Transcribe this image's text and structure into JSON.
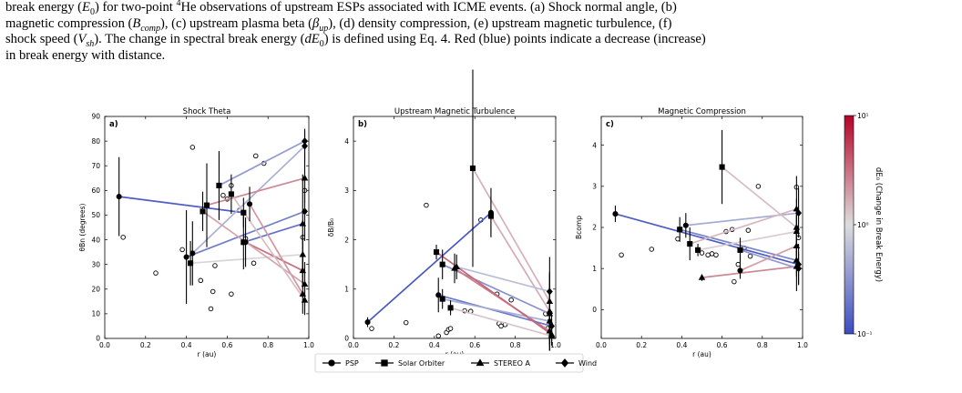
{
  "caption": {
    "line1_html": "break energy (<i>E</i><sub>0</sub>) for two-point <sup>4</sup>He observations of upstream ESPs associated with ICME events. (a) Shock normal angle, (b)",
    "line2_html": "magnetic compression (<i>B<sub>comp</sub></i>), (c) upstream plasma beta (<i>β<sub>up</sub></i>), (d) density compression, (e) upstream magnetic turbulence, (f)",
    "line3_html": "shock speed (<i>V<sub>sh</sub></i>). The change in spectral break energy (<i>dE</i><sub>0</sub>) is defined using Eq. 4. Red (blue) points indicate a decrease (increase)",
    "line4_html": "in break energy with distance."
  },
  "colors": {
    "cmap_low": "#3b4cc0",
    "cmap_mid": "#dddddd",
    "cmap_high": "#b40426",
    "error_bar": "#000000"
  },
  "legend": {
    "entries": [
      {
        "label": "PSP",
        "marker": "circle"
      },
      {
        "label": "Solar Orbiter",
        "marker": "square"
      },
      {
        "label": "STEREO A",
        "marker": "triangle"
      },
      {
        "label": "Wind",
        "marker": "diamond"
      }
    ]
  },
  "colorbar": {
    "label": "dE₀ (Change in Break Energy)",
    "scale": "log",
    "ticks": [
      "10⁻¹",
      "10⁰",
      "10¹"
    ],
    "range": [
      0.1,
      10
    ]
  },
  "chart_data": [
    {
      "type": "scatter",
      "panel_label": "a)",
      "title": "Shock Theta",
      "xlabel": "r (au)",
      "ylabel": "θBn (degrees)",
      "xlim": [
        0,
        1.0
      ],
      "ylim": [
        0,
        90
      ],
      "xticks": [
        "0.0",
        "0.2",
        "0.4",
        "0.6",
        "0.8",
        "1.0"
      ],
      "yticks": [
        "0",
        "10",
        "20",
        "30",
        "40",
        "50",
        "60",
        "70",
        "80",
        "90"
      ],
      "open_points": [
        [
          0.09,
          41
        ],
        [
          0.25,
          26.5
        ],
        [
          0.38,
          36
        ],
        [
          0.43,
          77.5
        ],
        [
          0.47,
          23.5
        ],
        [
          0.52,
          12
        ],
        [
          0.53,
          19
        ],
        [
          0.54,
          29.5
        ],
        [
          0.58,
          58
        ],
        [
          0.6,
          56.5
        ],
        [
          0.62,
          62
        ],
        [
          0.62,
          18
        ],
        [
          0.66,
          52
        ],
        [
          0.69,
          40.5
        ],
        [
          0.73,
          30.5
        ],
        [
          0.74,
          74
        ],
        [
          0.78,
          71
        ],
        [
          0.97,
          41
        ],
        [
          0.98,
          60
        ]
      ],
      "pairs": [
        {
          "x1": 0.07,
          "y1": 57.5,
          "m1": "circle",
          "e1": 16,
          "x2": 0.68,
          "y2": 51,
          "m2": "square",
          "e2": 6,
          "dE0": 0.13
        },
        {
          "x1": 0.4,
          "y1": 33,
          "m1": "circle",
          "e1": 19,
          "x2": 0.98,
          "y2": 51.5,
          "m2": "diamond",
          "e2": 12,
          "dE0": 0.22
        },
        {
          "x1": 0.42,
          "y1": 30.5,
          "m1": "square",
          "e1": 9,
          "x2": 0.97,
          "y2": 34,
          "m2": "triangle",
          "e2": 8,
          "dE0": 1.1
        },
        {
          "x1": 0.43,
          "y1": 34.5,
          "m1": "circle",
          "e1": 13,
          "x2": 0.98,
          "y2": 78,
          "m2": "diamond",
          "e2": 6,
          "dE0": 0.5
        },
        {
          "x1": 0.5,
          "y1": 54,
          "m1": "square",
          "e1": 17,
          "x2": 0.98,
          "y2": 65,
          "m2": "triangle",
          "e2": 10,
          "dE0": 2.5
        },
        {
          "x1": 0.56,
          "y1": 62,
          "m1": "square",
          "e1": 14,
          "x2": 0.98,
          "y2": 80,
          "m2": "diamond",
          "e2": 5,
          "dE0": 0.35
        },
        {
          "x1": 0.68,
          "y1": 39,
          "m1": "square",
          "e1": 11,
          "x2": 0.97,
          "y2": 46.5,
          "m2": "triangle",
          "e2": 20,
          "dE0": 0.18
        },
        {
          "x1": 0.69,
          "y1": 39,
          "m1": "circle",
          "e1": 10,
          "x2": 0.97,
          "y2": 27.5,
          "m2": "triangle",
          "e2": 7,
          "dE0": 3.2
        },
        {
          "x1": 0.48,
          "y1": 51.5,
          "m1": "square",
          "e1": 8,
          "x2": 0.98,
          "y2": 22,
          "m2": "triangle",
          "e2": 9,
          "dE0": 1.8
        },
        {
          "x1": 0.71,
          "y1": 54.5,
          "m1": "circle",
          "e1": 7,
          "x2": 0.97,
          "y2": 18,
          "m2": "triangle",
          "e2": 8,
          "dE0": 2.1
        },
        {
          "x1": 0.62,
          "y1": 58.5,
          "m1": "square",
          "e1": 8,
          "x2": 0.98,
          "y2": 15.5,
          "m2": "triangle",
          "e2": 6,
          "dE0": 1.4
        }
      ]
    },
    {
      "type": "scatter",
      "panel_label": "b)",
      "title": "Upstream Magnetic Turbulence",
      "xlabel": "r (au)",
      "ylabel": "δB/B₀",
      "xlim": [
        0,
        1.0
      ],
      "ylim": [
        0,
        4.5
      ],
      "xticks": [
        "0.0",
        "0.2",
        "0.4",
        "0.6",
        "0.8",
        "1.0"
      ],
      "yticks": [
        "0",
        "1",
        "2",
        "3",
        "4"
      ],
      "open_points": [
        [
          0.09,
          0.2
        ],
        [
          0.26,
          0.32
        ],
        [
          0.36,
          2.7
        ],
        [
          0.42,
          0.05
        ],
        [
          0.46,
          0.12
        ],
        [
          0.47,
          0.18
        ],
        [
          0.48,
          0.2
        ],
        [
          0.55,
          0.56
        ],
        [
          0.58,
          0.55
        ],
        [
          0.63,
          2.4
        ],
        [
          0.71,
          0.9
        ],
        [
          0.72,
          0.3
        ],
        [
          0.73,
          0.25
        ],
        [
          0.75,
          0.28
        ],
        [
          0.78,
          0.78
        ],
        [
          0.95,
          0.5
        ],
        [
          0.96,
          0.2
        ],
        [
          0.97,
          0.35
        ]
      ],
      "pairs": [
        {
          "x1": 0.07,
          "y1": 0.33,
          "m1": "circle",
          "e1": 0.1,
          "x2": 0.68,
          "y2": 2.55,
          "m2": "circle",
          "e2": 0.5,
          "dE0": 0.12
        },
        {
          "x1": 0.59,
          "y1": 3.45,
          "m1": "square",
          "e1": 2.0,
          "x2": 0.97,
          "y2": 0.75,
          "m2": "triangle",
          "e2": 0.9,
          "dE0": 1.6
        },
        {
          "x1": 0.68,
          "y1": 2.48,
          "m1": "square",
          "e1": 0.4,
          "x2": 0.97,
          "y2": 0.55,
          "m2": "triangle",
          "e2": 0.8,
          "dE0": 1.7
        },
        {
          "x1": 0.44,
          "y1": 1.5,
          "m1": "square",
          "e1": 0.3,
          "x2": 0.97,
          "y2": 0.5,
          "m2": "triangle",
          "e2": 0.6,
          "dE0": 0.3
        },
        {
          "x1": 0.51,
          "y1": 1.45,
          "m1": "triangle",
          "e1": 0.25,
          "x2": 0.97,
          "y2": 0.95,
          "m2": "diamond",
          "e2": 0.35,
          "dE0": 0.6
        },
        {
          "x1": 0.5,
          "y1": 1.42,
          "m1": "triangle",
          "e1": 0.3,
          "x2": 0.97,
          "y2": 0.15,
          "m2": "triangle",
          "e2": 0.4,
          "dE0": 2.8
        },
        {
          "x1": 0.42,
          "y1": 0.88,
          "m1": "circle",
          "e1": 0.35,
          "x2": 0.98,
          "y2": 0.25,
          "m2": "diamond",
          "e2": 0.3,
          "dE0": 0.2
        },
        {
          "x1": 0.44,
          "y1": 0.8,
          "m1": "square",
          "e1": 0.2,
          "x2": 0.97,
          "y2": 0.35,
          "m2": "triangle",
          "e2": 0.25,
          "dE0": 0.45
        },
        {
          "x1": 0.41,
          "y1": 1.75,
          "m1": "square",
          "e1": 0.15,
          "x2": 0.98,
          "y2": 0.08,
          "m2": "triangle",
          "e2": 0.15,
          "dE0": 3.5
        },
        {
          "x1": 0.48,
          "y1": 0.62,
          "m1": "square",
          "e1": 0.15,
          "x2": 0.98,
          "y2": 0.05,
          "m2": "triangle",
          "e2": 0.2,
          "dE0": 1.3
        }
      ]
    },
    {
      "type": "scatter",
      "panel_label": "c)",
      "title": "Magnetic Compression",
      "xlabel": "r (au)",
      "ylabel": "Bcomp",
      "xlim": [
        0,
        1.0
      ],
      "ylim": [
        -0.7,
        4.7
      ],
      "xticks": [
        "0.0",
        "0.2",
        "0.4",
        "0.6",
        "0.8",
        "1.0"
      ],
      "yticks": [
        "0",
        "1",
        "2",
        "3",
        "4"
      ],
      "open_points": [
        [
          0.1,
          1.33
        ],
        [
          0.25,
          1.47
        ],
        [
          0.38,
          1.72
        ],
        [
          0.42,
          2.05
        ],
        [
          0.5,
          1.38
        ],
        [
          0.53,
          1.33
        ],
        [
          0.55,
          1.36
        ],
        [
          0.57,
          1.33
        ],
        [
          0.62,
          1.9
        ],
        [
          0.65,
          1.95
        ],
        [
          0.66,
          0.68
        ],
        [
          0.68,
          1.1
        ],
        [
          0.71,
          1.5
        ],
        [
          0.73,
          1.93
        ],
        [
          0.74,
          1.3
        ],
        [
          0.78,
          3.0
        ],
        [
          0.97,
          2.98
        ],
        [
          0.98,
          1.75
        ]
      ],
      "pairs": [
        {
          "x1": 0.07,
          "y1": 2.33,
          "m1": "circle",
          "e1": 0.2,
          "x2": 0.98,
          "y2": 1.1,
          "m2": "diamond",
          "e2": 0.5,
          "dE0": 0.13
        },
        {
          "x1": 0.39,
          "y1": 1.95,
          "m1": "square",
          "e1": 0.3,
          "x2": 0.97,
          "y2": 1.2,
          "m2": "triangle",
          "e2": 0.4,
          "dE0": 0.25
        },
        {
          "x1": 0.42,
          "y1": 2.05,
          "m1": "circle",
          "e1": 0.3,
          "x2": 0.98,
          "y2": 2.35,
          "m2": "diamond",
          "e2": 0.6,
          "dE0": 0.45
        },
        {
          "x1": 0.44,
          "y1": 1.6,
          "m1": "square",
          "e1": 0.4,
          "x2": 0.97,
          "y2": 2.45,
          "m2": "triangle",
          "e2": 0.8,
          "dE0": 1.5
        },
        {
          "x1": 0.5,
          "y1": 0.78,
          "m1": "triangle",
          "e1": 0.08,
          "x2": 0.97,
          "y2": 1.05,
          "m2": "triangle",
          "e2": 0.6,
          "dE0": 2.5
        },
        {
          "x1": 0.6,
          "y1": 3.47,
          "m1": "square",
          "e1": 0.9,
          "x2": 0.97,
          "y2": 2.0,
          "m2": "triangle",
          "e2": 0.7,
          "dE0": 1.4
        },
        {
          "x1": 0.69,
          "y1": 1.45,
          "m1": "square",
          "e1": 0.3,
          "x2": 0.98,
          "y2": 1.0,
          "m2": "diamond",
          "e2": 0.4,
          "dE0": 0.35
        },
        {
          "x1": 0.69,
          "y1": 0.95,
          "m1": "circle",
          "e1": 0.2,
          "x2": 0.97,
          "y2": 1.55,
          "m2": "triangle",
          "e2": 0.5,
          "dE0": 1.9
        },
        {
          "x1": 0.48,
          "y1": 1.45,
          "m1": "square",
          "e1": 0.15,
          "x2": 0.97,
          "y2": 1.9,
          "m2": "triangle",
          "e2": 0.4,
          "dE0": 1.2
        }
      ]
    }
  ]
}
